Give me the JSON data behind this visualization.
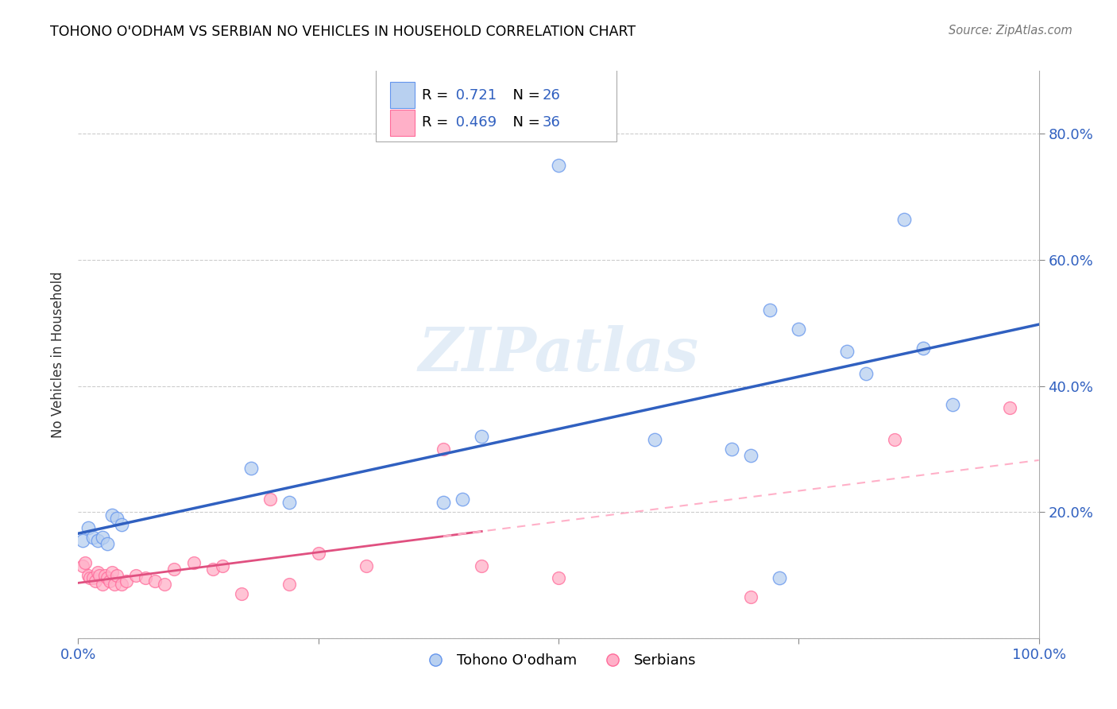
{
  "title": "TOHONO O'ODHAM VS SERBIAN NO VEHICLES IN HOUSEHOLD CORRELATION CHART",
  "source": "Source: ZipAtlas.com",
  "ylabel": "No Vehicles in Household",
  "xlim": [
    0.0,
    1.0
  ],
  "ylim": [
    0.0,
    0.9
  ],
  "legend1_r": "0.721",
  "legend1_n": "26",
  "legend2_r": "0.469",
  "legend2_n": "36",
  "blue_scatter_face": "#B8D0F0",
  "blue_scatter_edge": "#6495ED",
  "pink_scatter_face": "#FFB0C8",
  "pink_scatter_edge": "#FF6B9A",
  "blue_line_color": "#3060C0",
  "pink_solid_color": "#E05080",
  "pink_dash_color": "#FFB0C8",
  "tohono_x": [
    0.005,
    0.01,
    0.015,
    0.02,
    0.025,
    0.03,
    0.035,
    0.04,
    0.045,
    0.18,
    0.22,
    0.38,
    0.4,
    0.6,
    0.42,
    0.72,
    0.8,
    0.86,
    0.91,
    0.5,
    0.68,
    0.7,
    0.73,
    0.75,
    0.82,
    0.88
  ],
  "tohono_y": [
    0.155,
    0.175,
    0.16,
    0.155,
    0.16,
    0.15,
    0.195,
    0.19,
    0.18,
    0.27,
    0.215,
    0.215,
    0.22,
    0.315,
    0.32,
    0.52,
    0.455,
    0.665,
    0.37,
    0.75,
    0.3,
    0.29,
    0.095,
    0.49,
    0.42,
    0.46
  ],
  "serbian_x": [
    0.005,
    0.007,
    0.01,
    0.012,
    0.015,
    0.018,
    0.02,
    0.022,
    0.025,
    0.028,
    0.03,
    0.033,
    0.035,
    0.038,
    0.04,
    0.045,
    0.05,
    0.06,
    0.07,
    0.08,
    0.09,
    0.1,
    0.12,
    0.14,
    0.15,
    0.17,
    0.2,
    0.22,
    0.25,
    0.3,
    0.38,
    0.42,
    0.5,
    0.7,
    0.85,
    0.97
  ],
  "serbian_y": [
    0.115,
    0.12,
    0.1,
    0.095,
    0.095,
    0.09,
    0.105,
    0.1,
    0.085,
    0.1,
    0.095,
    0.09,
    0.105,
    0.085,
    0.1,
    0.085,
    0.09,
    0.1,
    0.095,
    0.09,
    0.085,
    0.11,
    0.12,
    0.11,
    0.115,
    0.07,
    0.22,
    0.085,
    0.135,
    0.115,
    0.3,
    0.115,
    0.095,
    0.065,
    0.315,
    0.365
  ]
}
